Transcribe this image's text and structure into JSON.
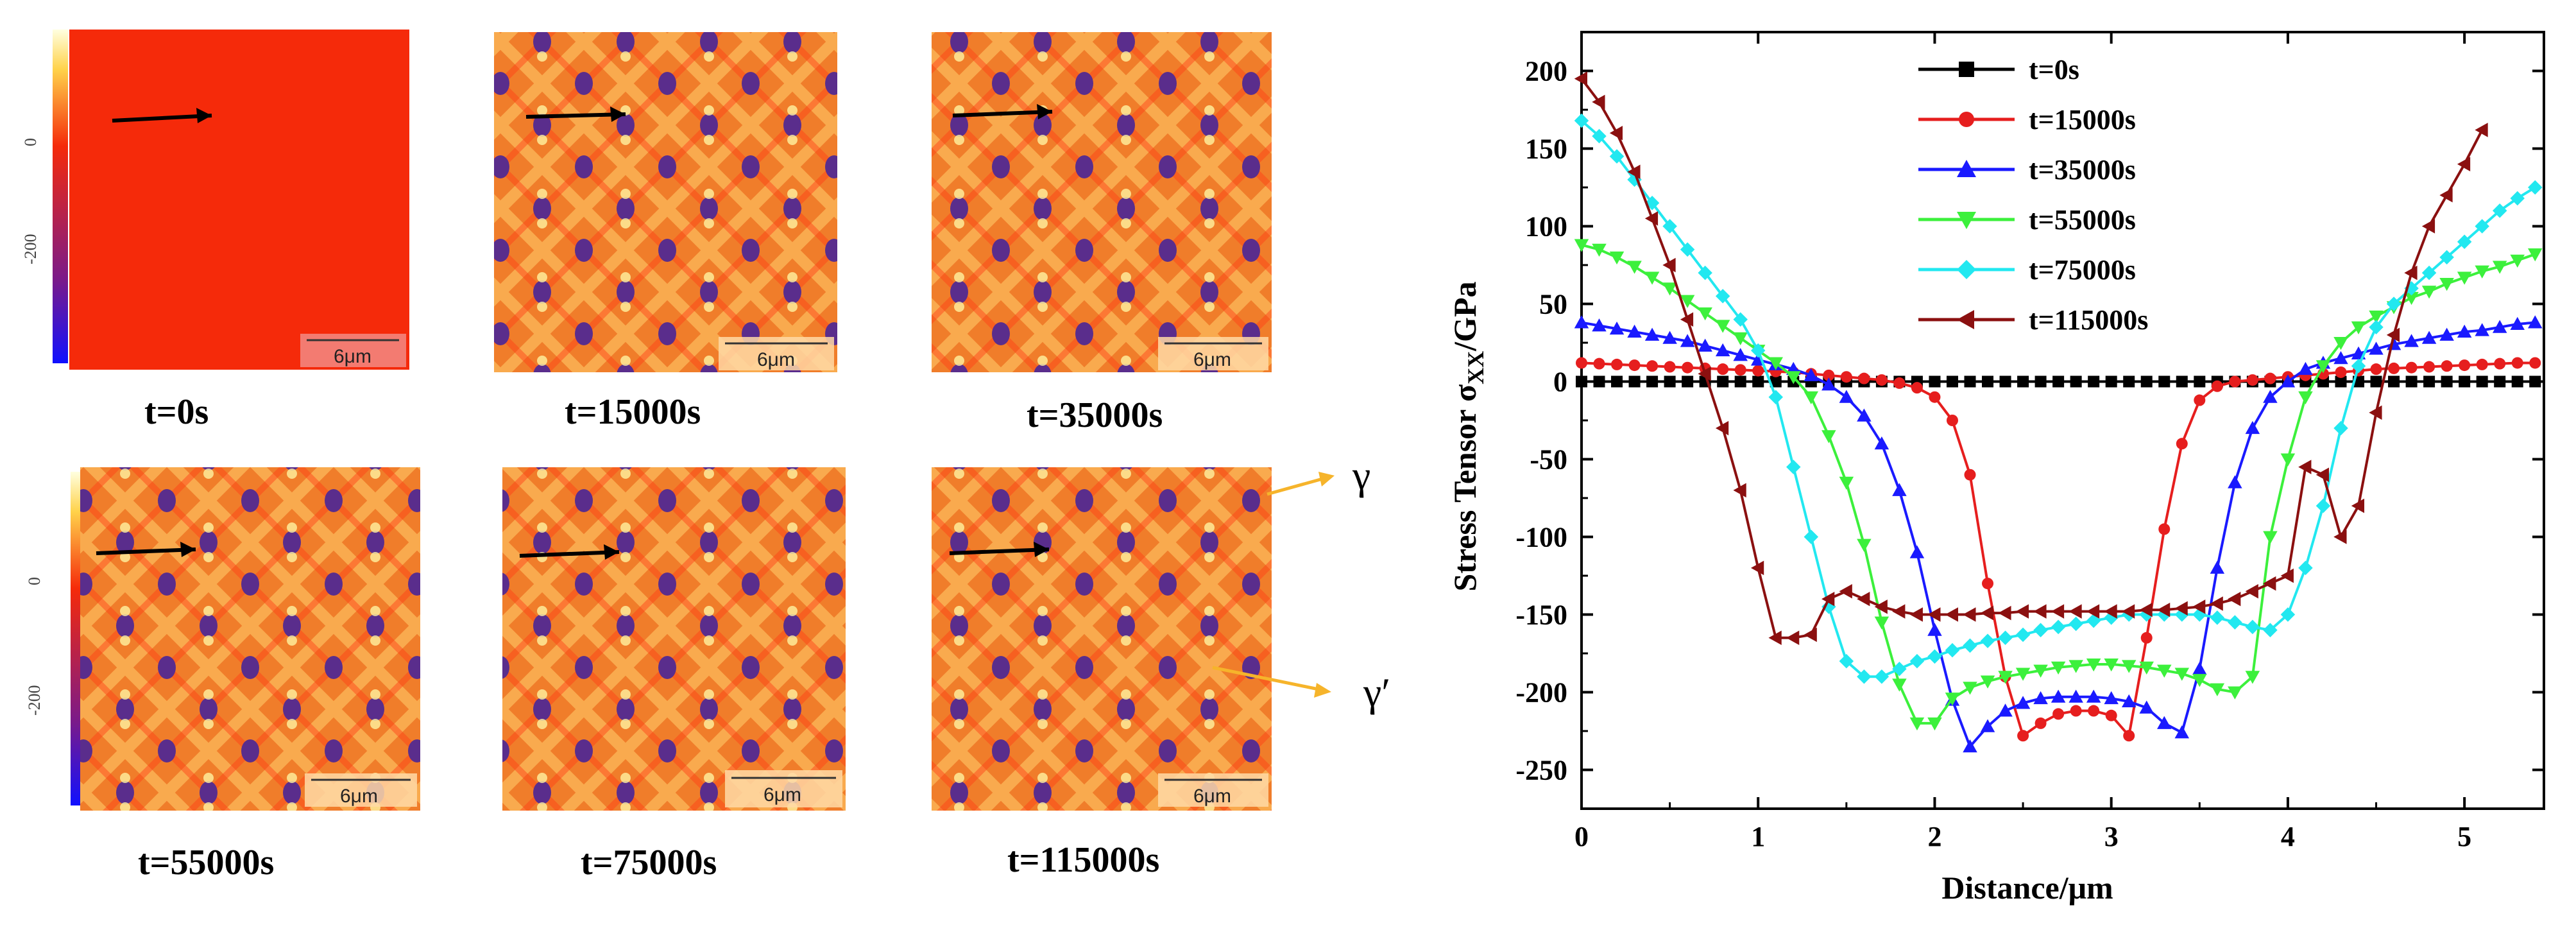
{
  "colors": {
    "matrix_initial": "#f52a0a",
    "gamma_prime": "#5a2d8c",
    "gamma_channel": "#ffd266",
    "phase_arrow": "#f6b42b"
  },
  "microstructure": {
    "colorbar_ticks": [
      "0",
      "-200"
    ],
    "scale_bar_label": "6μm",
    "phase_labels": {
      "gamma": "γ",
      "gamma_prime": "γ′"
    },
    "panels": [
      {
        "title": "t=0s",
        "precipitate_level": 0
      },
      {
        "title": "t=15000s",
        "precipitate_level": 0.12
      },
      {
        "title": "t=35000s",
        "precipitate_level": 0.22
      },
      {
        "title": "t=55000s",
        "precipitate_level": 0.3
      },
      {
        "title": "t=75000s",
        "precipitate_level": 0.36
      },
      {
        "title": "t=115000s",
        "precipitate_level": 0.44
      }
    ]
  },
  "chart_data": {
    "type": "line",
    "xlabel": "Distance/μm",
    "ylabel_prefix": "Stress Tensor σ",
    "ylabel_subscript": "XX",
    "ylabel_suffix": "/GPa",
    "xlim": [
      0,
      5.45
    ],
    "ylim": [
      -275,
      225
    ],
    "xticks": [
      0,
      1,
      2,
      3,
      4,
      5
    ],
    "yticks": [
      -250,
      -200,
      -150,
      -100,
      -50,
      0,
      50,
      100,
      150,
      200
    ],
    "grid": false,
    "legend_position": "top-center",
    "series": [
      {
        "name": "t=0s",
        "color": "#000000",
        "marker": "square",
        "x": [
          0,
          0.1,
          0.2,
          0.3,
          0.4,
          0.5,
          0.6,
          0.7,
          0.8,
          0.9,
          1.0,
          1.1,
          1.2,
          1.3,
          1.4,
          1.5,
          1.6,
          1.7,
          1.8,
          1.9,
          2.0,
          2.1,
          2.2,
          2.3,
          2.4,
          2.5,
          2.6,
          2.7,
          2.8,
          2.9,
          3.0,
          3.1,
          3.2,
          3.3,
          3.4,
          3.5,
          3.6,
          3.7,
          3.8,
          3.9,
          4.0,
          4.1,
          4.2,
          4.3,
          4.4,
          4.5,
          4.6,
          4.7,
          4.8,
          4.9,
          5.0,
          5.1,
          5.2,
          5.3,
          5.4
        ],
        "y": [
          0,
          0,
          0,
          0,
          0,
          0,
          0,
          0,
          0,
          0,
          0,
          0,
          0,
          0,
          0,
          0,
          0,
          0,
          0,
          0,
          0,
          0,
          0,
          0,
          0,
          0,
          0,
          0,
          0,
          0,
          0,
          0,
          0,
          0,
          0,
          0,
          0,
          0,
          0,
          0,
          0,
          0,
          0,
          0,
          0,
          0,
          0,
          0,
          0,
          0,
          0,
          0,
          0,
          0,
          0
        ]
      },
      {
        "name": "t=15000s",
        "color": "#e61e1e",
        "marker": "circle",
        "x": [
          0,
          0.1,
          0.2,
          0.3,
          0.4,
          0.5,
          0.6,
          0.7,
          0.8,
          0.9,
          1.0,
          1.1,
          1.2,
          1.3,
          1.4,
          1.5,
          1.6,
          1.7,
          1.8,
          1.9,
          2.0,
          2.1,
          2.2,
          2.3,
          2.4,
          2.5,
          2.6,
          2.7,
          2.8,
          2.9,
          3.0,
          3.1,
          3.2,
          3.3,
          3.4,
          3.5,
          3.6,
          3.7,
          3.8,
          3.9,
          4.0,
          4.1,
          4.2,
          4.3,
          4.4,
          4.5,
          4.6,
          4.7,
          4.8,
          4.9,
          5.0,
          5.1,
          5.2,
          5.3,
          5.4
        ],
        "y": [
          12,
          11.5,
          11,
          10.5,
          10,
          9.5,
          9,
          8.5,
          8,
          7.5,
          7,
          6.5,
          6,
          5,
          4,
          3,
          2,
          1,
          -1,
          -4,
          -10,
          -25,
          -60,
          -130,
          -190,
          -228,
          -220,
          -214,
          -212,
          -212,
          -215,
          -228,
          -165,
          -95,
          -40,
          -12,
          -3,
          0,
          1,
          2,
          3,
          4,
          5,
          6,
          7,
          8,
          8.5,
          9,
          9.5,
          10,
          10.5,
          11,
          11.5,
          12,
          12
        ]
      },
      {
        "name": "t=35000s",
        "color": "#1a1aff",
        "marker": "triangle-up",
        "x": [
          0,
          0.1,
          0.2,
          0.3,
          0.4,
          0.5,
          0.6,
          0.7,
          0.8,
          0.9,
          1.0,
          1.1,
          1.2,
          1.3,
          1.4,
          1.5,
          1.6,
          1.7,
          1.8,
          1.9,
          2.0,
          2.1,
          2.2,
          2.3,
          2.4,
          2.5,
          2.6,
          2.7,
          2.8,
          2.9,
          3.0,
          3.1,
          3.2,
          3.3,
          3.4,
          3.5,
          3.6,
          3.7,
          3.8,
          3.9,
          4.0,
          4.1,
          4.2,
          4.3,
          4.4,
          4.5,
          4.6,
          4.7,
          4.8,
          4.9,
          5.0,
          5.1,
          5.2,
          5.3,
          5.4
        ],
        "y": [
          38,
          36,
          34,
          32,
          30,
          28,
          26,
          23,
          20,
          17,
          14,
          11,
          8,
          4,
          -2,
          -10,
          -22,
          -40,
          -70,
          -110,
          -160,
          -205,
          -235,
          -222,
          -212,
          -207,
          -204,
          -203,
          -203,
          -203,
          -204,
          -206,
          -210,
          -220,
          -226,
          -185,
          -120,
          -65,
          -30,
          -10,
          0,
          8,
          12,
          15,
          18,
          21,
          24,
          26,
          28,
          30,
          32,
          33,
          35,
          37,
          38
        ]
      },
      {
        "name": "t=55000s",
        "color": "#3cf03c",
        "marker": "triangle-down",
        "x": [
          0,
          0.1,
          0.2,
          0.3,
          0.4,
          0.5,
          0.6,
          0.7,
          0.8,
          0.9,
          1.0,
          1.1,
          1.2,
          1.3,
          1.4,
          1.5,
          1.6,
          1.7,
          1.8,
          1.9,
          2.0,
          2.1,
          2.2,
          2.3,
          2.4,
          2.5,
          2.6,
          2.7,
          2.8,
          2.9,
          3.0,
          3.1,
          3.2,
          3.3,
          3.4,
          3.5,
          3.6,
          3.7,
          3.8,
          3.9,
          4.0,
          4.1,
          4.2,
          4.3,
          4.4,
          4.5,
          4.6,
          4.7,
          4.8,
          4.9,
          5.0,
          5.1,
          5.2,
          5.3,
          5.4
        ],
        "y": [
          88,
          85,
          80,
          74,
          67,
          60,
          52,
          44,
          36,
          28,
          20,
          12,
          3,
          -10,
          -35,
          -65,
          -105,
          -155,
          -195,
          -220,
          -220,
          -204,
          -197,
          -193,
          -190,
          -188,
          -186,
          -184,
          -183,
          -182,
          -182,
          -183,
          -184,
          -186,
          -188,
          -192,
          -198,
          -200,
          -190,
          -100,
          -50,
          -10,
          10,
          25,
          35,
          42,
          48,
          54,
          58,
          63,
          67,
          71,
          74,
          78,
          82
        ]
      },
      {
        "name": "t=75000s",
        "color": "#22e8f0",
        "marker": "diamond",
        "x": [
          0,
          0.1,
          0.2,
          0.3,
          0.4,
          0.5,
          0.6,
          0.7,
          0.8,
          0.9,
          1.0,
          1.1,
          1.2,
          1.3,
          1.4,
          1.5,
          1.6,
          1.7,
          1.8,
          1.9,
          2.0,
          2.1,
          2.2,
          2.3,
          2.4,
          2.5,
          2.6,
          2.7,
          2.8,
          2.9,
          3.0,
          3.1,
          3.2,
          3.3,
          3.4,
          3.5,
          3.6,
          3.7,
          3.8,
          3.9,
          4.0,
          4.1,
          4.2,
          4.3,
          4.4,
          4.5,
          4.6,
          4.7,
          4.8,
          4.9,
          5.0,
          5.1,
          5.2,
          5.3,
          5.4
        ],
        "y": [
          168,
          158,
          145,
          130,
          115,
          100,
          85,
          70,
          55,
          40,
          20,
          -10,
          -55,
          -100,
          -145,
          -180,
          -190,
          -190,
          -185,
          -180,
          -177,
          -173,
          -170,
          -167,
          -165,
          -163,
          -160,
          -158,
          -156,
          -154,
          -152,
          -150,
          -150,
          -150,
          -150,
          -150,
          -152,
          -155,
          -158,
          -160,
          -150,
          -120,
          -80,
          -30,
          10,
          35,
          50,
          60,
          70,
          80,
          90,
          100,
          110,
          118,
          125
        ]
      },
      {
        "name": "t=115000s",
        "color": "#8b1010",
        "marker": "triangle-left",
        "x": [
          0,
          0.1,
          0.2,
          0.3,
          0.4,
          0.5,
          0.6,
          0.7,
          0.8,
          0.9,
          1.0,
          1.1,
          1.2,
          1.3,
          1.4,
          1.5,
          1.6,
          1.7,
          1.8,
          1.9,
          2.0,
          2.1,
          2.2,
          2.3,
          2.4,
          2.5,
          2.6,
          2.7,
          2.8,
          2.9,
          3.0,
          3.1,
          3.2,
          3.3,
          3.4,
          3.5,
          3.6,
          3.7,
          3.8,
          3.9,
          4.0,
          4.1,
          4.2,
          4.3,
          4.4,
          4.5,
          4.6,
          4.7,
          4.8,
          4.9,
          5.0,
          5.1
        ],
        "y": [
          195,
          180,
          160,
          135,
          105,
          75,
          40,
          5,
          -30,
          -70,
          -120,
          -165,
          -165,
          -163,
          -140,
          -135,
          -140,
          -145,
          -148,
          -150,
          -150,
          -150,
          -150,
          -149,
          -149,
          -148,
          -148,
          -148,
          -148,
          -148,
          -148,
          -148,
          -147,
          -147,
          -146,
          -145,
          -143,
          -140,
          -135,
          -130,
          -125,
          -55,
          -60,
          -100,
          -80,
          -20,
          30,
          70,
          100,
          120,
          140,
          162
        ]
      }
    ]
  }
}
